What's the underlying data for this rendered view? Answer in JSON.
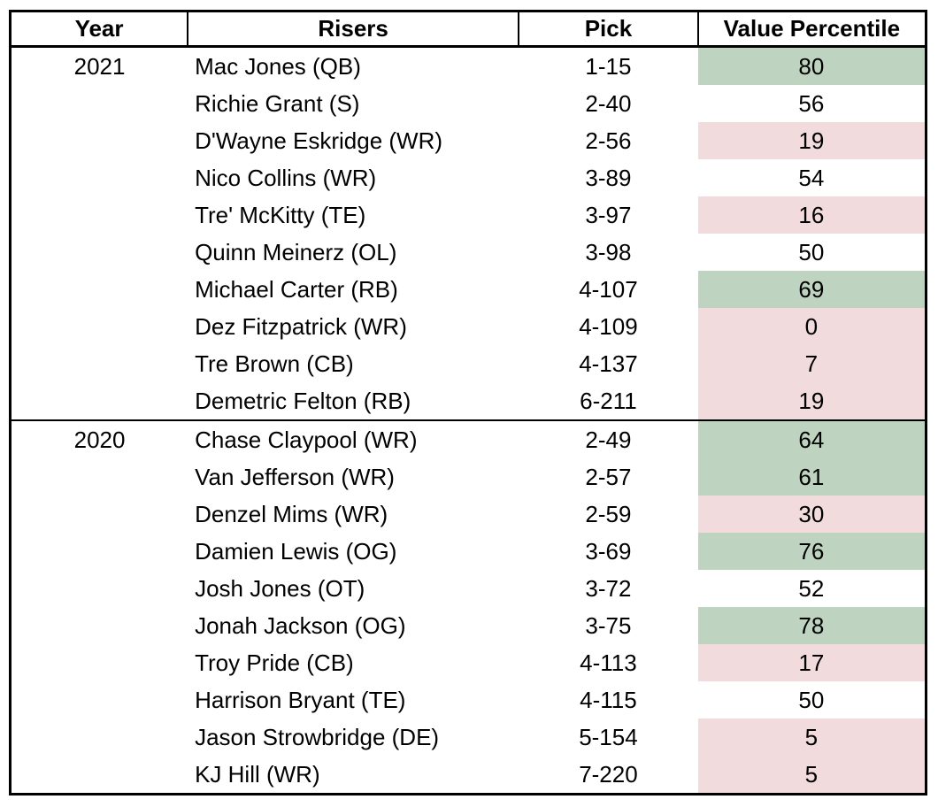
{
  "chart_data": {
    "type": "table",
    "columns": [
      "Year",
      "Risers",
      "Pick",
      "Value Percentile"
    ],
    "highlight_colors": {
      "green": "#bed4c0",
      "pink": "#f1dbdc"
    },
    "sections": [
      {
        "year": "2021",
        "rows": [
          {
            "player": "Mac Jones (QB)",
            "pick": "1-15",
            "value": 80,
            "highlight": "green"
          },
          {
            "player": "Richie Grant (S)",
            "pick": "2-40",
            "value": 56,
            "highlight": "none"
          },
          {
            "player": "D'Wayne Eskridge (WR)",
            "pick": "2-56",
            "value": 19,
            "highlight": "pink"
          },
          {
            "player": "Nico Collins (WR)",
            "pick": "3-89",
            "value": 54,
            "highlight": "none"
          },
          {
            "player": "Tre' McKitty (TE)",
            "pick": "3-97",
            "value": 16,
            "highlight": "pink"
          },
          {
            "player": "Quinn Meinerz (OL)",
            "pick": "3-98",
            "value": 50,
            "highlight": "none"
          },
          {
            "player": "Michael Carter (RB)",
            "pick": "4-107",
            "value": 69,
            "highlight": "green"
          },
          {
            "player": "Dez Fitzpatrick (WR)",
            "pick": "4-109",
            "value": 0,
            "highlight": "pink"
          },
          {
            "player": "Tre Brown (CB)",
            "pick": "4-137",
            "value": 7,
            "highlight": "pink"
          },
          {
            "player": "Demetric Felton (RB)",
            "pick": "6-211",
            "value": 19,
            "highlight": "pink"
          }
        ]
      },
      {
        "year": "2020",
        "rows": [
          {
            "player": "Chase Claypool (WR)",
            "pick": "2-49",
            "value": 64,
            "highlight": "green"
          },
          {
            "player": "Van Jefferson (WR)",
            "pick": "2-57",
            "value": 61,
            "highlight": "green"
          },
          {
            "player": "Denzel Mims (WR)",
            "pick": "2-59",
            "value": 30,
            "highlight": "pink"
          },
          {
            "player": "Damien Lewis (OG)",
            "pick": "3-69",
            "value": 76,
            "highlight": "green"
          },
          {
            "player": "Josh Jones (OT)",
            "pick": "3-72",
            "value": 52,
            "highlight": "none"
          },
          {
            "player": "Jonah Jackson (OG)",
            "pick": "3-75",
            "value": 78,
            "highlight": "green"
          },
          {
            "player": "Troy Pride (CB)",
            "pick": "4-113",
            "value": 17,
            "highlight": "pink"
          },
          {
            "player": "Harrison Bryant (TE)",
            "pick": "4-115",
            "value": 50,
            "highlight": "none"
          },
          {
            "player": "Jason Strowbridge (DE)",
            "pick": "5-154",
            "value": 5,
            "highlight": "pink"
          },
          {
            "player": "KJ Hill (WR)",
            "pick": "7-220",
            "value": 5,
            "highlight": "pink"
          }
        ]
      }
    ]
  }
}
